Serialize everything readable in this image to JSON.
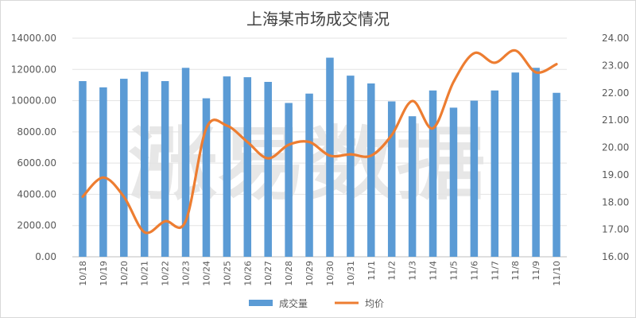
{
  "chart_data": {
    "type": "bar",
    "title": "上海某市场成交情况",
    "watermark": "涨易数据",
    "categories": [
      "10/18",
      "10/19",
      "10/20",
      "10/21",
      "10/22",
      "10/23",
      "10/24",
      "10/25",
      "10/26",
      "10/27",
      "10/28",
      "10/29",
      "10/30",
      "10/31",
      "11/1",
      "11/2",
      "11/3",
      "11/4",
      "11/5",
      "11/6",
      "11/7",
      "11/8",
      "11/9",
      "11/10"
    ],
    "series": [
      {
        "name": "成交量",
        "type": "bar",
        "axis": "left",
        "color": "#5b9bd5",
        "values": [
          11250,
          10850,
          11400,
          11850,
          11250,
          12100,
          10150,
          11550,
          11500,
          11200,
          9850,
          10450,
          12750,
          11600,
          11100,
          9950,
          9000,
          10650,
          9550,
          10000,
          10650,
          11800,
          12100,
          10500
        ]
      },
      {
        "name": "均价",
        "type": "line",
        "axis": "right",
        "color": "#ed7d31",
        "values": [
          18.2,
          18.9,
          18.2,
          16.9,
          17.3,
          17.3,
          20.7,
          20.8,
          20.2,
          19.6,
          20.1,
          20.2,
          19.7,
          19.75,
          19.7,
          20.45,
          21.7,
          20.7,
          22.4,
          23.45,
          23.1,
          23.55,
          22.75,
          23.05
        ]
      }
    ],
    "ylim_left": [
      0,
      14000
    ],
    "yticks_left": [
      "0.00",
      "2000.00",
      "4000.00",
      "6000.00",
      "8000.00",
      "10000.00",
      "12000.00",
      "14000.00"
    ],
    "ylim_right": [
      16,
      24
    ],
    "yticks_right": [
      "16.00",
      "17.00",
      "18.00",
      "19.00",
      "20.00",
      "21.00",
      "22.00",
      "23.00",
      "24.00"
    ],
    "grid": true,
    "legend_position": "bottom"
  }
}
